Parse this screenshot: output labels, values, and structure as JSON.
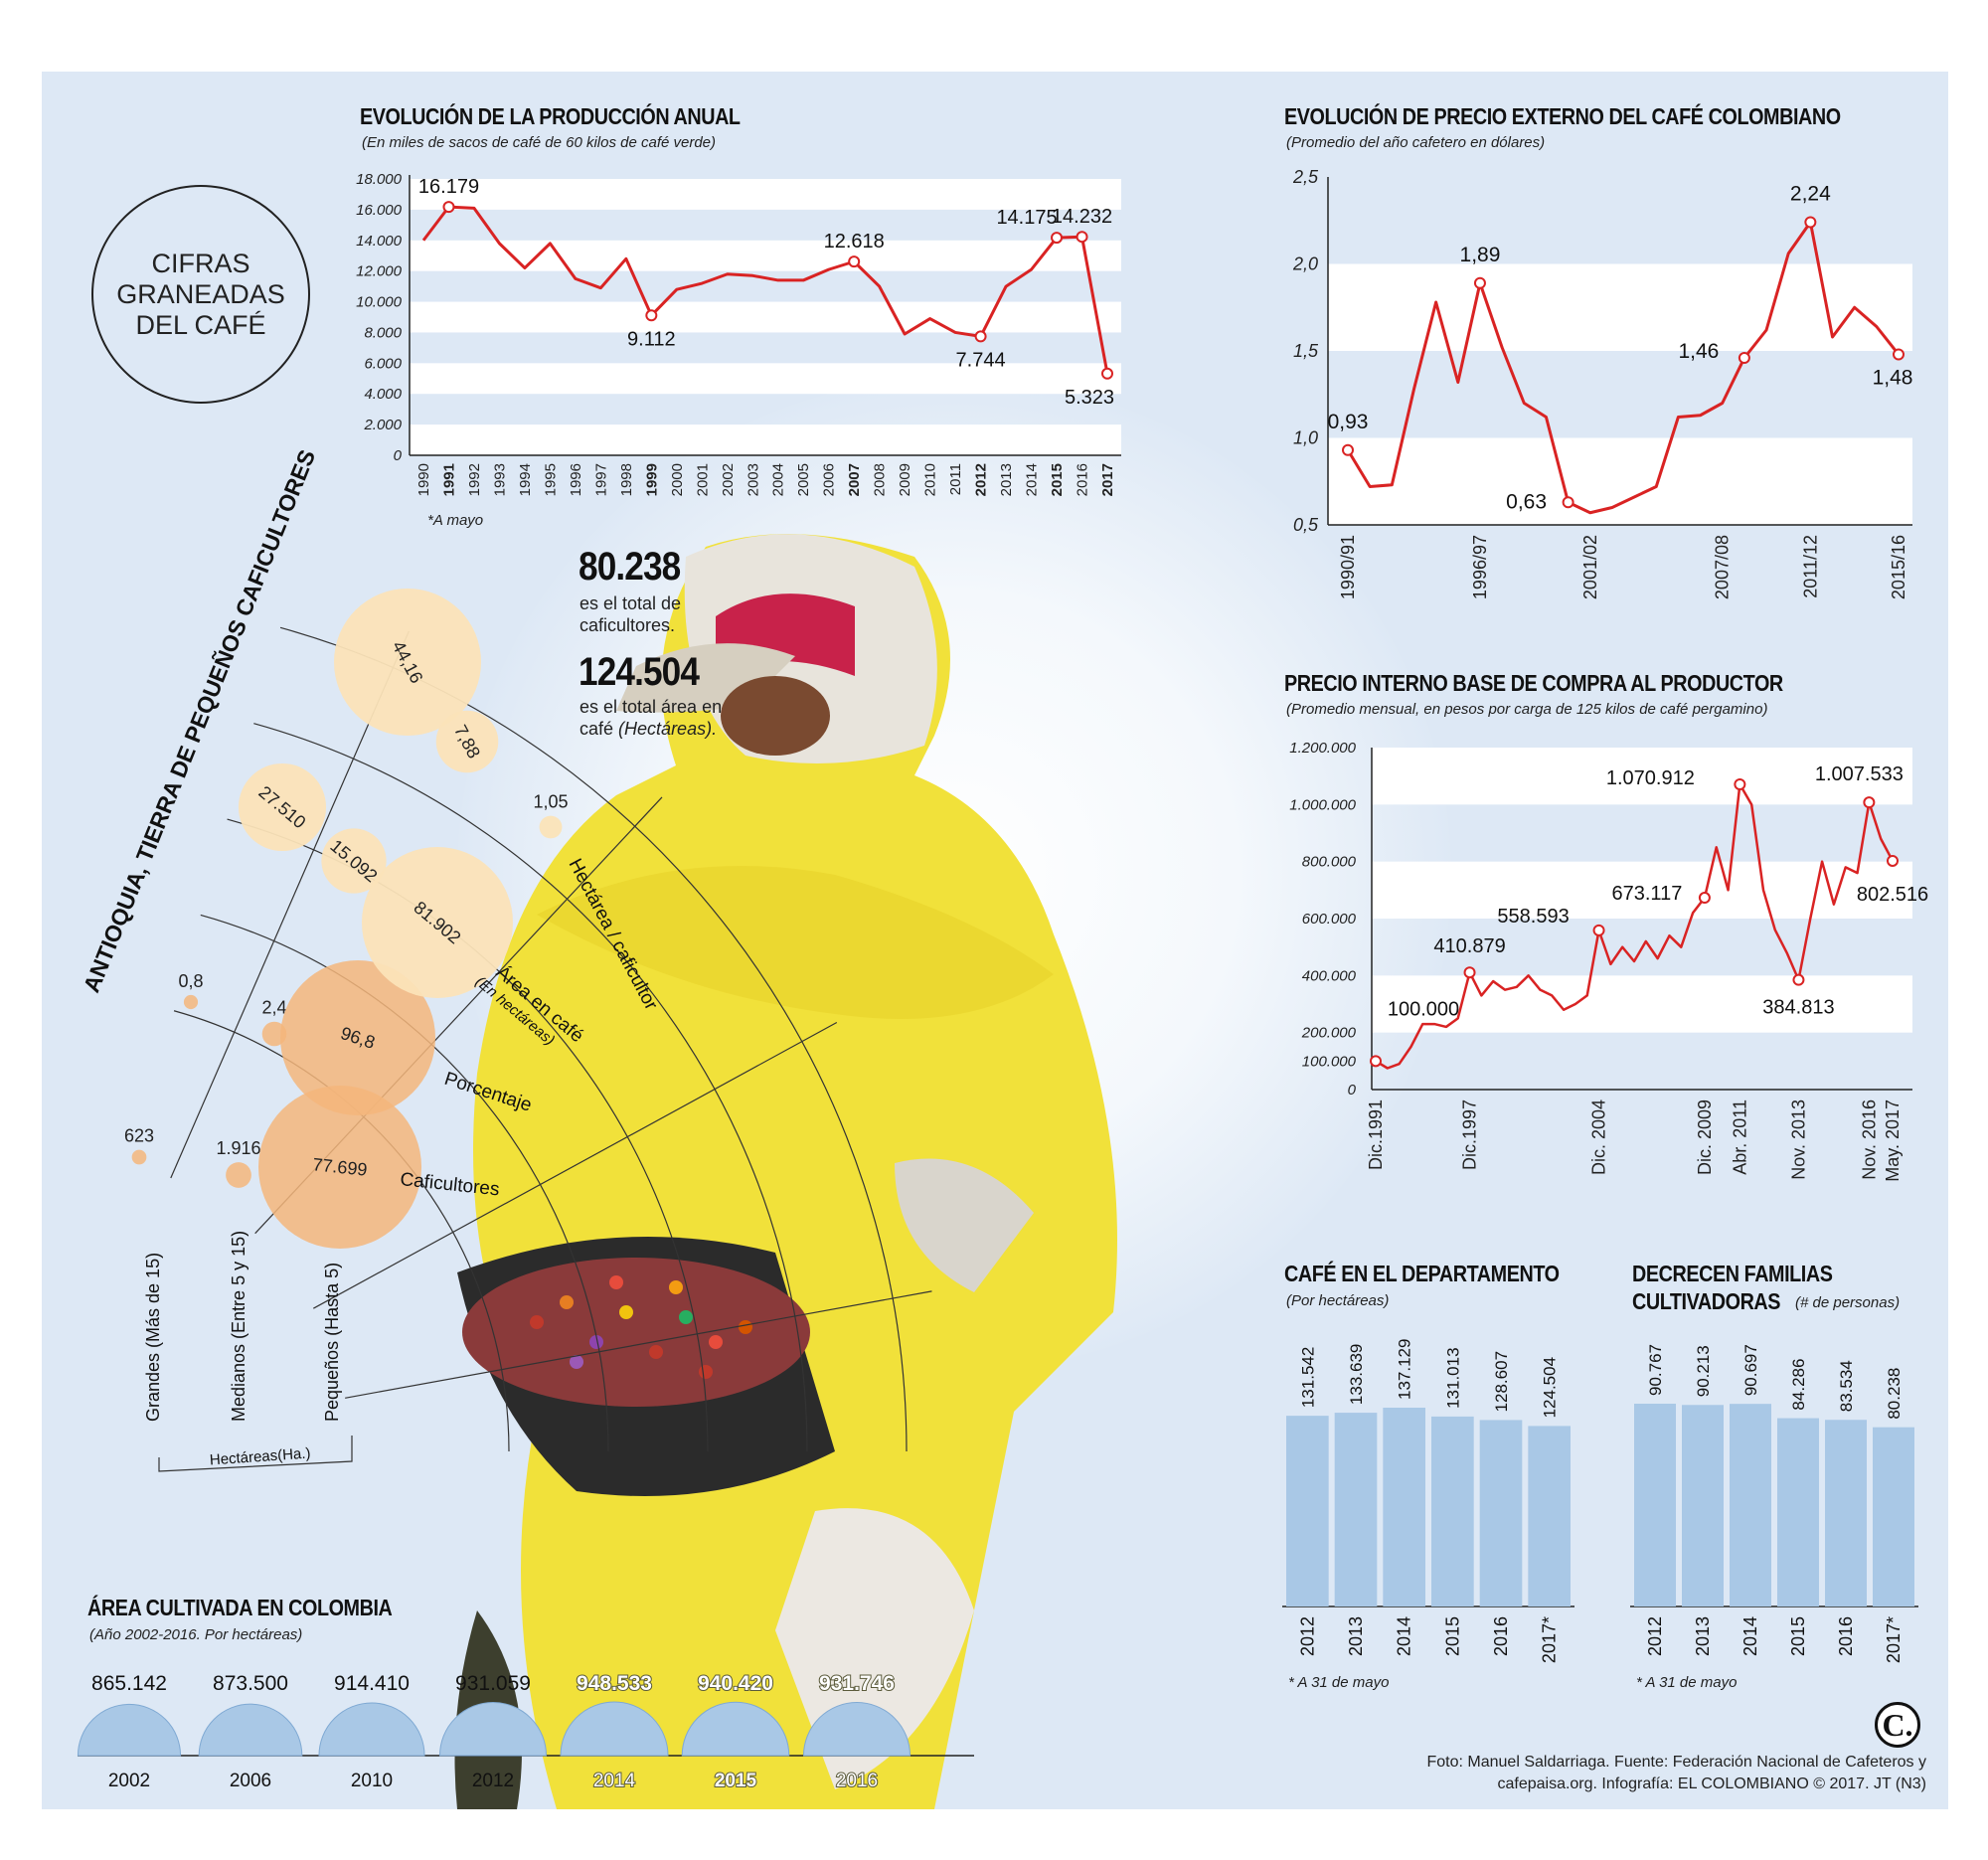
{
  "header": {
    "badge": "CIFRAS\nGRANEADAS\nDEL CAFÉ",
    "total_farmers_value": "80.238",
    "total_farmers_text": "es el total de caficultores.",
    "total_area_value": "124.504",
    "total_area_text_a": "es el total área en café",
    "total_area_text_b": "(Hectáreas)."
  },
  "colors": {
    "line": "#d92323",
    "bar": "#a9c8e6",
    "band": "#e3ecf7",
    "bubble_light": "#fbe3b8",
    "bubble_dark": "#f5b67b"
  },
  "chart_data": [
    {
      "id": "produccion",
      "type": "line",
      "title": "EVOLUCIÓN DE LA PRODUCCIÓN ANUAL",
      "subtitle": "(En miles de sacos de café de 60 kilos de café verde)",
      "note": "*A mayo",
      "x": [
        "1990",
        "1991",
        "1992",
        "1993",
        "1994",
        "1995",
        "1996",
        "1997",
        "1998",
        "1999",
        "2000",
        "2001",
        "2002",
        "2003",
        "2004",
        "2005",
        "2006",
        "2007",
        "2008",
        "2009",
        "2010",
        "2011",
        "2012",
        "2013",
        "2014",
        "2015",
        "2016",
        "2017"
      ],
      "bold_x": [
        "1991",
        "1999",
        "2007",
        "2012",
        "2015",
        "2017"
      ],
      "values": [
        14000,
        16179,
        16100,
        13800,
        12200,
        13800,
        11500,
        10900,
        12800,
        9112,
        10800,
        11200,
        11800,
        11700,
        11400,
        11400,
        12100,
        12618,
        11000,
        7900,
        8900,
        8000,
        7744,
        11000,
        12100,
        14175,
        14232,
        5323
      ],
      "labels": {
        "1": "16.179",
        "9": "9.112",
        "17": "12.618",
        "22": "7.744",
        "25": "14.175",
        "26": "14.232",
        "27": "5.323"
      },
      "y_ticks": [
        "0",
        "2.000",
        "4.000",
        "6.000",
        "8.000",
        "10.000",
        "12.000",
        "14.000",
        "16.000",
        "18.000"
      ],
      "ylim": [
        0,
        18000
      ]
    },
    {
      "id": "precio_externo",
      "type": "line",
      "title": "EVOLUCIÓN DE PRECIO EXTERNO DEL CAFÉ COLOMBIANO",
      "subtitle": "(Promedio del año cafetero en dólares)",
      "x_ticks": [
        "1990/91",
        "1996/97",
        "2001/02",
        "2007/08",
        "2011/12",
        "2015/16"
      ],
      "values": [
        0.93,
        0.72,
        0.73,
        1.28,
        1.78,
        1.32,
        1.89,
        1.52,
        1.2,
        1.12,
        0.63,
        0.57,
        0.6,
        0.66,
        0.72,
        1.12,
        1.13,
        1.2,
        1.46,
        1.62,
        2.06,
        2.24,
        1.58,
        1.75,
        1.64,
        1.48
      ],
      "labels": {
        "0": "0,93",
        "6": "1,89",
        "10": "0,63",
        "18": "1,46",
        "21": "2,24",
        "25": "1,48"
      },
      "y_ticks": [
        "0,5",
        "1,0",
        "1,5",
        "2,0",
        "2,5"
      ],
      "ylim": [
        0.5,
        2.5
      ]
    },
    {
      "id": "precio_interno",
      "type": "line",
      "title": "PRECIO INTERNO BASE DE COMPRA AL PRODUCTOR",
      "subtitle": "(Promedio mensual, en pesos por carga de 125 kilos de café pergamino)",
      "x_ticks": [
        "Dic.1991",
        "Dic.1997",
        "Dic. 2004",
        "Dic. 2009",
        "Abr. 2011",
        "Nov. 2013",
        "Nov. 2016",
        "May. 2017"
      ],
      "points": [
        [
          "Dic.1991",
          100000
        ],
        [
          "1992",
          75000
        ],
        [
          "1993",
          90000
        ],
        [
          "1994",
          150000
        ],
        [
          "1994b",
          230000
        ],
        [
          "1995",
          230000
        ],
        [
          "1996",
          220000
        ],
        [
          "1997",
          250000
        ],
        [
          "Dic.1997",
          410879
        ],
        [
          "1998",
          330000
        ],
        [
          "1998b",
          380000
        ],
        [
          "1999",
          350000
        ],
        [
          "2000",
          360000
        ],
        [
          "2001",
          400000
        ],
        [
          "2001b",
          350000
        ],
        [
          "2002",
          330000
        ],
        [
          "2002b",
          280000
        ],
        [
          "2003",
          300000
        ],
        [
          "2004",
          330000
        ],
        [
          "Dic. 2004",
          558593
        ],
        [
          "2005",
          440000
        ],
        [
          "2005b",
          500000
        ],
        [
          "2006",
          450000
        ],
        [
          "2006b",
          520000
        ],
        [
          "2007",
          460000
        ],
        [
          "2008",
          540000
        ],
        [
          "2008b",
          500000
        ],
        [
          "2009",
          620000
        ],
        [
          "Dic. 2009",
          673117
        ],
        [
          "2010",
          850000
        ],
        [
          "2010b",
          700000
        ],
        [
          "Abr. 2011",
          1070912
        ],
        [
          "2011b",
          1000000
        ],
        [
          "2012",
          700000
        ],
        [
          "2012b",
          560000
        ],
        [
          "2013",
          480000
        ],
        [
          "Nov. 2013",
          384813
        ],
        [
          "2014",
          600000
        ],
        [
          "2014b",
          800000
        ],
        [
          "2015",
          650000
        ],
        [
          "2015b",
          780000
        ],
        [
          "2016",
          760000
        ],
        [
          "Nov. 2016",
          1007533
        ],
        [
          "2017",
          880000
        ],
        [
          "May. 2017",
          802516
        ]
      ],
      "labels": {
        "Dic.1991": "100.000",
        "Dic.1997": "410.879",
        "Dic. 2004": "558.593",
        "Dic. 2009": "673.117",
        "Abr. 2011": "1.070.912",
        "Nov. 2013": "384.813",
        "Nov. 2016": "1.007.533",
        "May. 2017": "802.516"
      },
      "y_ticks": [
        "0",
        "100.000",
        "200.000",
        "400.000",
        "600.000",
        "800.000",
        "1.000.000",
        "1.200.000"
      ],
      "ylim": [
        0,
        1200000
      ]
    },
    {
      "id": "cafe_departamento",
      "type": "bar",
      "title": "CAFÉ EN EL DEPARTAMENTO",
      "subtitle": "(Por hectáreas)",
      "note": "* A 31 de mayo",
      "categories": [
        "2012",
        "2013",
        "2014",
        "2015",
        "2016",
        "2017*"
      ],
      "values": [
        131542,
        133639,
        137129,
        131013,
        128607,
        124504
      ],
      "value_labels": [
        "131.542",
        "133.639",
        "137.129",
        "131.013",
        "128.607",
        "124.504"
      ],
      "ylim": [
        0,
        137129
      ]
    },
    {
      "id": "familias",
      "type": "bar",
      "title": "DECRECEN FAMILIAS",
      "title2": "CULTIVADORAS",
      "subtitle": "(# de personas)",
      "note": "* A 31 de mayo",
      "categories": [
        "2012",
        "2013",
        "2014",
        "2015",
        "2016",
        "2017*"
      ],
      "values": [
        90767,
        90213,
        90697,
        84286,
        83534,
        80238
      ],
      "value_labels": [
        "90.767",
        "90.213",
        "90.697",
        "84.286",
        "83.534",
        "80.238"
      ],
      "ylim": [
        0,
        90767
      ]
    },
    {
      "id": "area_colombia",
      "type": "bar",
      "title": "ÁREA CULTIVADA EN COLOMBIA",
      "subtitle": "(Año 2002-2016. Por hectáreas)",
      "categories": [
        "2002",
        "2006",
        "2010",
        "2012",
        "2014",
        "2015",
        "2016"
      ],
      "values": [
        865142,
        873500,
        914410,
        931059,
        948533,
        940420,
        931746
      ],
      "value_labels": [
        "865.142",
        "873.500",
        "914.410",
        "931.059",
        "948.533",
        "940.420",
        "931.746"
      ]
    },
    {
      "id": "antioquia",
      "type": "bubble",
      "title": "ANTIOQUIA, TIERRA DE PEQUEÑOS CAFICULTORES",
      "groups": [
        "Grandes (Más de 15)",
        "Medianos (Entre 5 y 15)",
        "Pequeños (Hasta 5)"
      ],
      "group_caption": "Hectáreas(Ha.)",
      "rows": [
        "Caficultores",
        "Porcentaje",
        "Área en café",
        "Hectárea / caficultor"
      ],
      "row_sub": {
        "Área en café": "(En hectáreas)"
      },
      "values": {
        "Caficultores": [
          "623",
          "1.916",
          "77.699"
        ],
        "Porcentaje": [
          "0,8",
          "2,4",
          "96,8"
        ],
        "Área en café": [
          "27.510",
          "15.092",
          "81.902"
        ],
        "Hectárea / caficultor": [
          "44,16",
          "7,88",
          "1,05"
        ]
      },
      "numeric": {
        "Caficultores": [
          623,
          1916,
          77699
        ],
        "Porcentaje": [
          0.8,
          2.4,
          96.8
        ],
        "Área en café": [
          27510,
          15092,
          81902
        ],
        "Hectárea / caficultor": [
          44.16,
          7.88,
          1.05
        ]
      }
    }
  ],
  "footer": {
    "credits_1": "Foto: Manuel Saldarriaga. Fuente: Federación Nacional de Cafeteros y",
    "credits_2": "cafepaisa.org. Infografía: EL COLOMBIANO © 2017. JT (N3)",
    "logo": "C."
  }
}
